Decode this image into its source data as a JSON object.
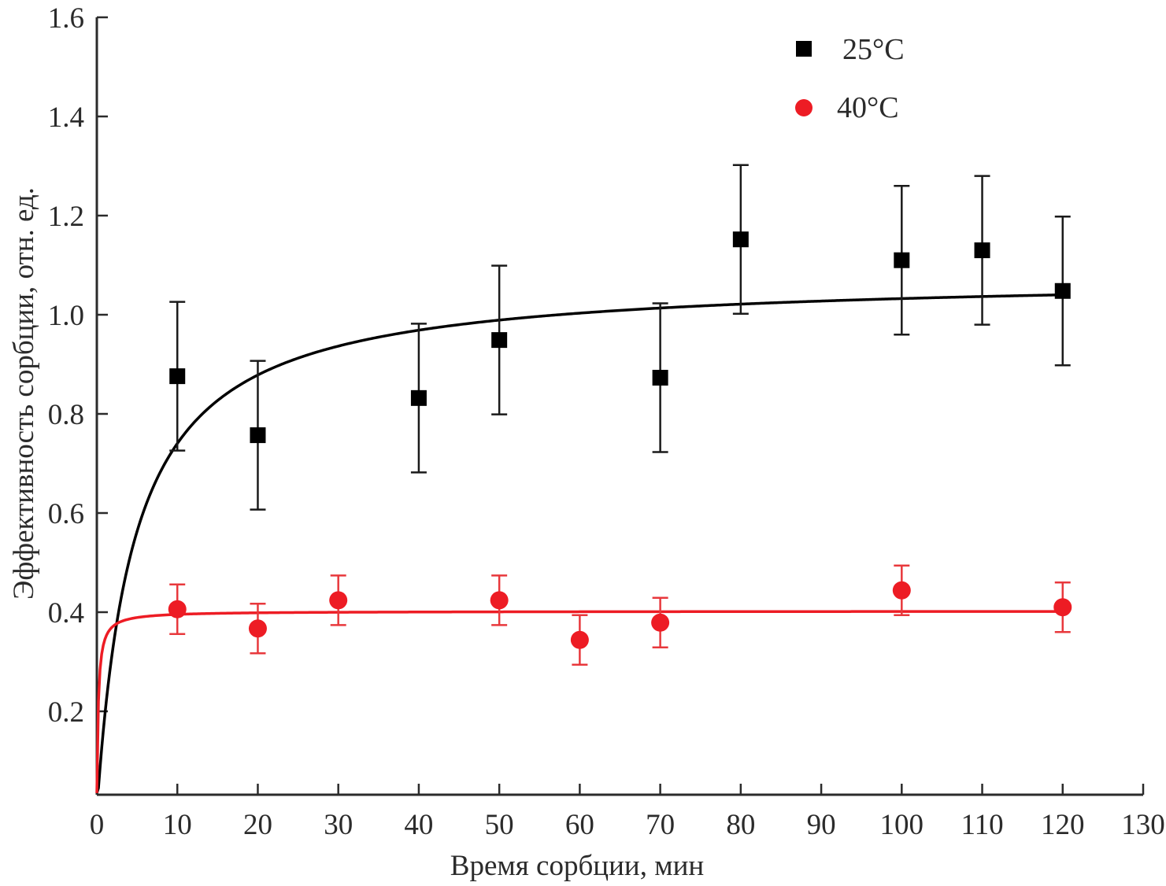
{
  "chart_data": {
    "type": "scatter",
    "title": "",
    "xlabel": "Время сорбции, мин",
    "ylabel": "Эффективность сорбции, отн. ед.",
    "xlim": [
      0,
      130
    ],
    "ylim": [
      0.035,
      1.6
    ],
    "x_ticks": [
      0,
      10,
      20,
      30,
      40,
      50,
      60,
      70,
      80,
      90,
      100,
      110,
      120,
      130
    ],
    "x_tick_labels": [
      "0",
      "10",
      "20",
      "30",
      "40",
      "50",
      "60",
      "70",
      "80",
      "90",
      "100",
      "110",
      "120",
      "130"
    ],
    "y_ticks": [
      0.2,
      0.4,
      0.6,
      0.8,
      1.0,
      1.2,
      1.4,
      1.6
    ],
    "y_tick_labels": [
      "0.2",
      "0.4",
      "0.6",
      "0.8",
      "1.0",
      "1.2",
      "1.4",
      "1.6"
    ],
    "grid": false,
    "legend_position": "top-right",
    "series": [
      {
        "name": "25°C",
        "marker": "square",
        "color": "#000000",
        "x": [
          10,
          20,
          40,
          50,
          70,
          80,
          100,
          110,
          120
        ],
        "y": [
          0.876,
          0.757,
          0.832,
          0.949,
          0.873,
          1.152,
          1.11,
          1.13,
          1.048
        ],
        "error": [
          0.15,
          0.15,
          0.15,
          0.15,
          0.15,
          0.15,
          0.15,
          0.15,
          0.15
        ],
        "fit": {
          "model": "a*t/(b+t)",
          "a": 1.08,
          "b": 4.59
        }
      },
      {
        "name": "40°C",
        "marker": "circle",
        "color": "#ED1C24",
        "x": [
          10,
          20,
          30,
          50,
          60,
          70,
          100,
          120
        ],
        "y": [
          0.406,
          0.367,
          0.424,
          0.424,
          0.344,
          0.379,
          0.444,
          0.41
        ],
        "error": [
          0.05,
          0.05,
          0.05,
          0.05,
          0.05,
          0.05,
          0.05,
          0.05
        ],
        "fit": {
          "model": "a*t/(b+t)",
          "a": 0.402,
          "b": 0.165
        }
      }
    ]
  }
}
